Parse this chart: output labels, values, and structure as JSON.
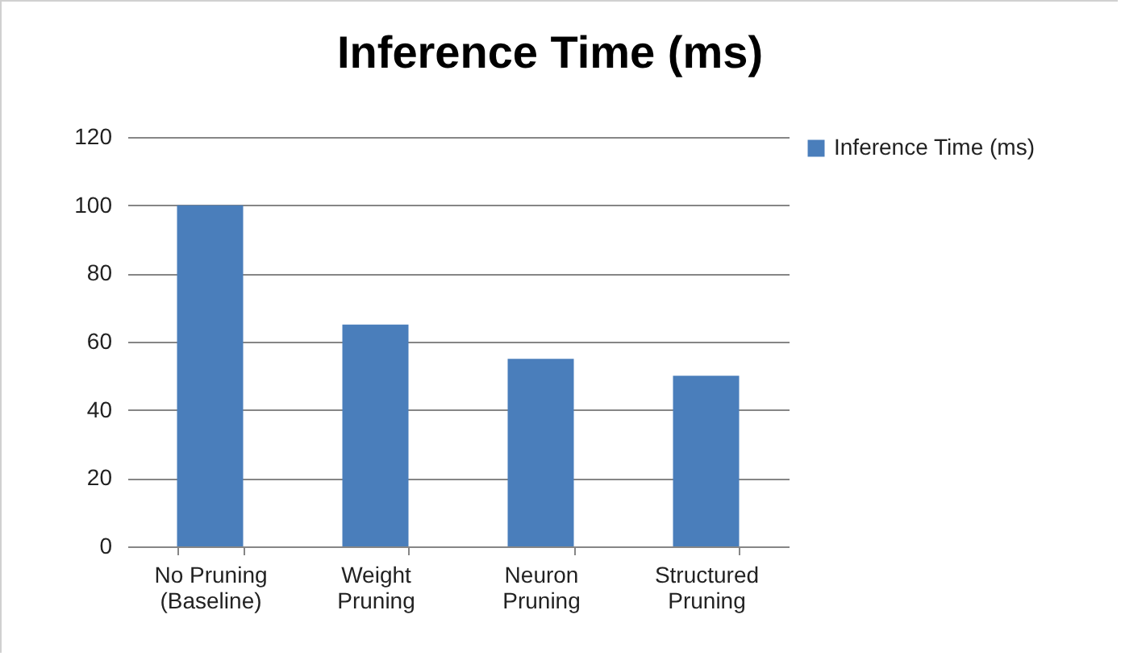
{
  "chart_data": {
    "type": "bar",
    "title": "Inference Time (ms)",
    "categories": [
      "No Pruning (Baseline)",
      "Weight Pruning",
      "Neuron Pruning",
      "Structured Pruning"
    ],
    "series": [
      {
        "name": "Inference Time (ms)",
        "color": "#4a7ebb",
        "values": [
          100,
          65,
          55,
          50
        ]
      }
    ],
    "ylim": [
      0,
      120
    ],
    "yticks": [
      0,
      20,
      40,
      60,
      80,
      100,
      120
    ],
    "grid": "y",
    "legend": "right"
  }
}
